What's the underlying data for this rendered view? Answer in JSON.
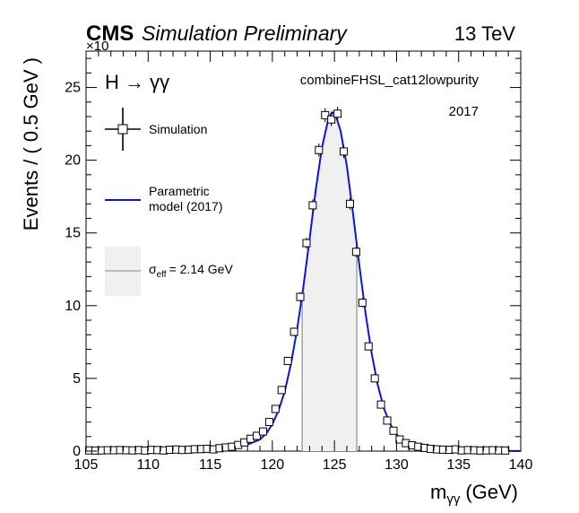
{
  "header": {
    "experiment": "CMS",
    "status": "Simulation Preliminary",
    "energy": "13 TeV",
    "exponent_label": "×10"
  },
  "annotations": {
    "process": "H → γγ",
    "category": "combineFHSL_cat12lowpurity",
    "year": "2017"
  },
  "legend": {
    "placement": "left",
    "simulation_label": "Simulation",
    "model_label_line1": "Parametric",
    "model_label_line2": "model (2017)",
    "sigma_symbol": "σ",
    "sigma_subscript": "eff",
    "sigma_value": "= 2.14 GeV"
  },
  "colors": {
    "model_line": "#0b16d6",
    "sigma_band": "#f0f0f0",
    "sigma_line": "#8c8c8c",
    "markers": "#000000"
  },
  "chart_data": {
    "type": "line",
    "xlabel_base": "m",
    "xlabel_sub": "γγ",
    "xlabel_unit": "(GeV)",
    "ylabel": "Events / ( 0.5 GeV )",
    "xlim": [
      105,
      140
    ],
    "ylim": [
      0,
      27.5
    ],
    "x_ticks": [
      "105",
      "110",
      "115",
      "120",
      "125",
      "130",
      "135",
      "140"
    ],
    "y_ticks": [
      "0",
      "5",
      "10",
      "15",
      "20",
      "25"
    ],
    "grid": false,
    "sigma_eff_band": [
      122.4,
      126.8
    ],
    "series": [
      {
        "name": "Simulation",
        "style": "open-square-markers-with-error-bars",
        "x": [
          105.25,
          105.75,
          106.25,
          106.75,
          107.25,
          107.75,
          108.25,
          108.75,
          109.25,
          109.75,
          110.25,
          110.75,
          111.25,
          111.75,
          112.25,
          112.75,
          113.25,
          113.75,
          114.25,
          114.75,
          115.25,
          115.75,
          116.25,
          116.75,
          117.25,
          117.75,
          118.25,
          118.75,
          119.25,
          119.75,
          120.25,
          120.75,
          121.25,
          121.75,
          122.25,
          122.75,
          123.25,
          123.75,
          124.25,
          124.75,
          125.25,
          125.75,
          126.25,
          126.75,
          127.25,
          127.75,
          128.25,
          128.75,
          129.25,
          129.75,
          130.25,
          130.75,
          131.25,
          131.75,
          132.25,
          132.75,
          133.25,
          133.75,
          134.25,
          134.75,
          135.25,
          135.75,
          136.25,
          136.75,
          137.25,
          137.75,
          138.25,
          138.75
        ],
        "y": [
          0.05,
          0.04,
          0.05,
          0.06,
          0.06,
          0.07,
          0.06,
          0.05,
          0.07,
          0.04,
          0.08,
          0.07,
          0.05,
          0.09,
          0.11,
          0.08,
          0.1,
          0.13,
          0.14,
          0.16,
          0.12,
          0.2,
          0.25,
          0.3,
          0.42,
          0.6,
          0.85,
          1.05,
          1.35,
          2.0,
          2.9,
          4.2,
          6.2,
          8.2,
          10.6,
          14.3,
          16.9,
          20.7,
          23.1,
          22.8,
          23.2,
          20.6,
          17.0,
          13.7,
          10.2,
          7.2,
          5.0,
          3.2,
          2.1,
          1.4,
          0.8,
          0.55,
          0.4,
          0.3,
          0.22,
          0.16,
          0.12,
          0.1,
          0.09,
          0.12,
          0.05,
          0.07,
          0.06,
          0.04,
          0.05,
          0.06,
          0.05,
          0.04
        ],
        "err": [
          0.05,
          0.05,
          0.05,
          0.05,
          0.05,
          0.05,
          0.05,
          0.05,
          0.05,
          0.05,
          0.05,
          0.05,
          0.05,
          0.05,
          0.06,
          0.05,
          0.06,
          0.06,
          0.06,
          0.06,
          0.06,
          0.07,
          0.08,
          0.08,
          0.09,
          0.1,
          0.12,
          0.13,
          0.14,
          0.17,
          0.2,
          0.24,
          0.28,
          0.3,
          0.33,
          0.38,
          0.41,
          0.45,
          0.48,
          0.47,
          0.48,
          0.45,
          0.41,
          0.37,
          0.32,
          0.27,
          0.22,
          0.18,
          0.15,
          0.12,
          0.09,
          0.08,
          0.07,
          0.06,
          0.05,
          0.05,
          0.05,
          0.05,
          0.05,
          0.05,
          0.05,
          0.05,
          0.05,
          0.05,
          0.05,
          0.05,
          0.05,
          0.05
        ]
      },
      {
        "name": "Parametric model (2017)",
        "style": "line",
        "x": [
          105,
          110,
          114,
          116,
          117,
          118,
          119,
          119.5,
          120,
          120.5,
          121,
          121.5,
          122,
          122.5,
          123,
          123.5,
          124,
          124.5,
          124.8,
          125.1,
          125.5,
          126,
          126.5,
          127,
          127.5,
          128,
          128.5,
          129,
          129.5,
          130,
          130.5,
          131,
          132,
          133,
          134,
          136,
          140
        ],
        "y": [
          0.02,
          0.04,
          0.08,
          0.15,
          0.25,
          0.45,
          0.8,
          1.2,
          1.85,
          2.8,
          4.1,
          6.0,
          8.4,
          11.3,
          14.6,
          18.0,
          20.9,
          22.8,
          23.3,
          23.1,
          22.0,
          19.6,
          16.3,
          12.8,
          9.5,
          6.7,
          4.5,
          2.9,
          1.85,
          1.15,
          0.72,
          0.45,
          0.18,
          0.08,
          0.04,
          0.02,
          0.01
        ]
      }
    ]
  }
}
